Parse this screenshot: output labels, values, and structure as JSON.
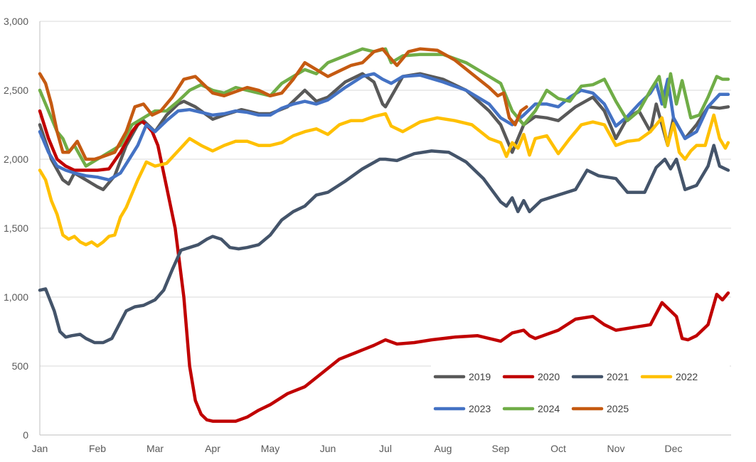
{
  "chart_data": {
    "type": "line",
    "title": "",
    "xlabel": "",
    "ylabel": "",
    "ylim": [
      0,
      3000
    ],
    "yticks": [
      0,
      500,
      1000,
      1500,
      2000,
      2500,
      3000
    ],
    "ytick_labels": [
      "0",
      "500",
      "1,000",
      "1,500",
      "2,000",
      "2,500",
      "3,000"
    ],
    "xlim": [
      0,
      12
    ],
    "month_labels": [
      "Jan",
      "Feb",
      "Mar",
      "Apr",
      "May",
      "Jun",
      "Jul",
      "Aug",
      "Sep",
      "Oct",
      "Nov",
      "Dec"
    ],
    "grid": true,
    "legend_position": "bottom-right",
    "series": [
      {
        "name": "2019",
        "color": "#595959",
        "x": [
          0,
          0.2,
          0.4,
          0.5,
          0.6,
          0.8,
          1.0,
          1.1,
          1.3,
          1.5,
          1.7,
          1.8,
          2.0,
          2.2,
          2.4,
          2.5,
          2.7,
          3.0,
          3.2,
          3.5,
          3.8,
          4.0,
          4.3,
          4.6,
          4.8,
          5.0,
          5.3,
          5.6,
          5.8,
          5.95,
          6.0,
          6.3,
          6.6,
          7.0,
          7.4,
          7.8,
          8.0,
          8.2,
          8.4,
          8.6,
          8.8,
          9.0,
          9.3,
          9.6,
          9.8,
          10.0,
          10.2,
          10.4,
          10.6,
          10.7,
          10.8,
          10.9,
          11.0,
          11.2,
          11.4,
          11.6,
          11.8,
          11.95
        ],
        "values": [
          2250,
          2000,
          1850,
          1820,
          1900,
          1850,
          1800,
          1780,
          1880,
          2100,
          2250,
          2280,
          2200,
          2320,
          2400,
          2420,
          2380,
          2290,
          2320,
          2360,
          2330,
          2330,
          2380,
          2500,
          2420,
          2450,
          2560,
          2620,
          2560,
          2400,
          2380,
          2600,
          2620,
          2580,
          2500,
          2350,
          2250,
          2050,
          2250,
          2310,
          2300,
          2280,
          2380,
          2450,
          2350,
          2150,
          2300,
          2350,
          2200,
          2400,
          2250,
          2100,
          2300,
          2150,
          2250,
          2380,
          2370,
          2380
        ]
      },
      {
        "name": "2020",
        "color": "#C00000",
        "x": [
          0,
          0.15,
          0.3,
          0.45,
          0.6,
          0.8,
          1.0,
          1.2,
          1.4,
          1.6,
          1.75,
          1.85,
          1.95,
          2.05,
          2.2,
          2.35,
          2.5,
          2.6,
          2.7,
          2.8,
          2.9,
          3.0,
          3.2,
          3.4,
          3.6,
          3.8,
          4.0,
          4.3,
          4.6,
          4.9,
          5.2,
          5.5,
          5.8,
          6.0,
          6.2,
          6.5,
          6.8,
          7.2,
          7.6,
          8.0,
          8.2,
          8.4,
          8.5,
          8.6,
          8.8,
          9.0,
          9.3,
          9.6,
          9.8,
          10.0,
          10.3,
          10.6,
          10.8,
          10.95,
          11.05,
          11.15,
          11.25,
          11.4,
          11.6,
          11.75,
          11.85,
          11.95
        ],
        "values": [
          2350,
          2150,
          2000,
          1950,
          1920,
          1920,
          1920,
          1930,
          2050,
          2200,
          2280,
          2250,
          2200,
          2100,
          1800,
          1500,
          1000,
          500,
          250,
          150,
          110,
          100,
          100,
          100,
          130,
          180,
          220,
          300,
          350,
          450,
          550,
          600,
          650,
          690,
          660,
          670,
          690,
          710,
          720,
          680,
          740,
          760,
          720,
          700,
          730,
          760,
          840,
          860,
          800,
          760,
          780,
          800,
          960,
          900,
          860,
          700,
          690,
          720,
          800,
          1020,
          980,
          1030
        ]
      },
      {
        "name": "2021",
        "color": "#44546A",
        "x": [
          0,
          0.1,
          0.25,
          0.35,
          0.45,
          0.55,
          0.7,
          0.8,
          0.95,
          1.1,
          1.25,
          1.35,
          1.5,
          1.65,
          1.8,
          2.0,
          2.15,
          2.3,
          2.45,
          2.6,
          2.75,
          2.9,
          3.0,
          3.15,
          3.3,
          3.45,
          3.6,
          3.8,
          4.0,
          4.2,
          4.4,
          4.6,
          4.8,
          5.0,
          5.3,
          5.6,
          5.9,
          6.0,
          6.2,
          6.5,
          6.8,
          7.1,
          7.4,
          7.7,
          8.0,
          8.1,
          8.2,
          8.3,
          8.4,
          8.5,
          8.7,
          9.0,
          9.3,
          9.5,
          9.7,
          10.0,
          10.2,
          10.5,
          10.7,
          10.85,
          10.95,
          11.05,
          11.2,
          11.4,
          11.6,
          11.7,
          11.8,
          11.95
        ],
        "values": [
          1050,
          1060,
          900,
          750,
          710,
          720,
          730,
          700,
          670,
          670,
          700,
          780,
          900,
          930,
          940,
          980,
          1050,
          1200,
          1340,
          1360,
          1380,
          1420,
          1440,
          1420,
          1360,
          1350,
          1360,
          1380,
          1450,
          1560,
          1620,
          1660,
          1740,
          1760,
          1840,
          1930,
          2000,
          2000,
          1990,
          2040,
          2060,
          2050,
          1980,
          1860,
          1690,
          1660,
          1720,
          1620,
          1700,
          1620,
          1700,
          1740,
          1780,
          1920,
          1880,
          1860,
          1760,
          1760,
          1940,
          2000,
          1930,
          2000,
          1780,
          1810,
          1950,
          2100,
          1950,
          1920
        ]
      },
      {
        "name": "2022",
        "color": "#FFC000",
        "x": [
          0,
          0.1,
          0.2,
          0.3,
          0.4,
          0.5,
          0.6,
          0.7,
          0.8,
          0.9,
          1.0,
          1.1,
          1.2,
          1.3,
          1.4,
          1.5,
          1.7,
          1.85,
          2.0,
          2.2,
          2.4,
          2.6,
          2.8,
          3.0,
          3.2,
          3.4,
          3.6,
          3.8,
          4.0,
          4.2,
          4.4,
          4.6,
          4.8,
          5.0,
          5.2,
          5.4,
          5.6,
          5.8,
          6.0,
          6.1,
          6.3,
          6.6,
          6.9,
          7.2,
          7.5,
          7.8,
          8.0,
          8.1,
          8.2,
          8.3,
          8.4,
          8.5,
          8.6,
          8.8,
          9.0,
          9.2,
          9.4,
          9.6,
          9.8,
          10.0,
          10.2,
          10.4,
          10.6,
          10.8,
          10.9,
          11.0,
          11.1,
          11.2,
          11.3,
          11.4,
          11.55,
          11.7,
          11.8,
          11.9,
          11.95
        ],
        "values": [
          1920,
          1850,
          1700,
          1600,
          1450,
          1420,
          1440,
          1400,
          1380,
          1400,
          1370,
          1400,
          1440,
          1450,
          1580,
          1650,
          1850,
          1980,
          1950,
          1970,
          2060,
          2150,
          2100,
          2060,
          2100,
          2130,
          2130,
          2100,
          2100,
          2120,
          2170,
          2200,
          2220,
          2180,
          2250,
          2280,
          2280,
          2310,
          2330,
          2240,
          2200,
          2270,
          2300,
          2280,
          2250,
          2150,
          2120,
          2020,
          2120,
          2080,
          2180,
          2030,
          2150,
          2170,
          2040,
          2150,
          2250,
          2270,
          2250,
          2100,
          2130,
          2140,
          2200,
          2300,
          2100,
          2260,
          2050,
          2000,
          2060,
          2100,
          2100,
          2320,
          2150,
          2080,
          2120
        ]
      },
      {
        "name": "2023",
        "color": "#4472C4",
        "x": [
          0,
          0.15,
          0.3,
          0.45,
          0.6,
          0.8,
          1.0,
          1.2,
          1.4,
          1.55,
          1.7,
          1.85,
          2.0,
          2.2,
          2.4,
          2.6,
          2.8,
          3.0,
          3.2,
          3.4,
          3.6,
          3.8,
          4.0,
          4.2,
          4.4,
          4.6,
          4.8,
          5.0,
          5.3,
          5.6,
          5.8,
          5.95,
          6.1,
          6.3,
          6.6,
          7.0,
          7.4,
          7.8,
          8.0,
          8.2,
          8.4,
          8.6,
          8.8,
          9.0,
          9.2,
          9.4,
          9.6,
          9.8,
          10.0,
          10.2,
          10.4,
          10.6,
          10.7,
          10.8,
          10.9,
          11.0,
          11.2,
          11.4,
          11.6,
          11.8,
          11.95
        ],
        "values": [
          2200,
          2050,
          1950,
          1920,
          1900,
          1880,
          1870,
          1850,
          1900,
          2000,
          2100,
          2250,
          2200,
          2280,
          2350,
          2360,
          2340,
          2320,
          2330,
          2350,
          2340,
          2320,
          2320,
          2370,
          2400,
          2420,
          2400,
          2430,
          2520,
          2600,
          2620,
          2580,
          2550,
          2600,
          2610,
          2560,
          2500,
          2400,
          2300,
          2250,
          2320,
          2400,
          2400,
          2380,
          2450,
          2500,
          2480,
          2400,
          2240,
          2310,
          2400,
          2480,
          2550,
          2400,
          2580,
          2300,
          2150,
          2200,
          2380,
          2470,
          2470
        ]
      },
      {
        "name": "2024",
        "color": "#70AD47",
        "x": [
          0,
          0.1,
          0.2,
          0.3,
          0.4,
          0.5,
          0.6,
          0.8,
          1.0,
          1.2,
          1.4,
          1.6,
          1.8,
          2.0,
          2.2,
          2.4,
          2.6,
          2.8,
          3.0,
          3.2,
          3.4,
          3.6,
          3.8,
          4.0,
          4.2,
          4.4,
          4.6,
          4.8,
          5.0,
          5.3,
          5.6,
          5.8,
          6.0,
          6.1,
          6.3,
          6.6,
          7.0,
          7.4,
          7.8,
          8.0,
          8.2,
          8.4,
          8.6,
          8.8,
          9.0,
          9.2,
          9.4,
          9.6,
          9.8,
          10.0,
          10.2,
          10.4,
          10.6,
          10.75,
          10.85,
          10.95,
          11.05,
          11.15,
          11.3,
          11.45,
          11.6,
          11.75,
          11.85,
          11.95
        ],
        "values": [
          2500,
          2400,
          2300,
          2200,
          2150,
          2050,
          2100,
          1950,
          2000,
          2050,
          2100,
          2250,
          2300,
          2350,
          2350,
          2420,
          2500,
          2540,
          2500,
          2480,
          2520,
          2500,
          2480,
          2460,
          2550,
          2600,
          2650,
          2620,
          2700,
          2750,
          2800,
          2780,
          2800,
          2700,
          2750,
          2760,
          2760,
          2700,
          2600,
          2550,
          2350,
          2250,
          2350,
          2500,
          2440,
          2420,
          2530,
          2540,
          2580,
          2420,
          2280,
          2350,
          2500,
          2600,
          2380,
          2620,
          2400,
          2570,
          2300,
          2320,
          2450,
          2600,
          2580,
          2580
        ]
      },
      {
        "name": "2025",
        "color": "#C55A11",
        "x": [
          0,
          0.1,
          0.2,
          0.3,
          0.4,
          0.5,
          0.65,
          0.8,
          0.95,
          1.1,
          1.3,
          1.5,
          1.65,
          1.8,
          1.95,
          2.1,
          2.3,
          2.5,
          2.7,
          2.85,
          3.0,
          3.2,
          3.4,
          3.6,
          3.8,
          4.0,
          4.2,
          4.4,
          4.6,
          4.8,
          5.0,
          5.2,
          5.4,
          5.6,
          5.8,
          5.95,
          6.05,
          6.2,
          6.4,
          6.6,
          6.9,
          7.2,
          7.5,
          7.8,
          7.95,
          8.05,
          8.15,
          8.25,
          8.35,
          8.45
        ],
        "values": [
          2620,
          2550,
          2400,
          2200,
          2050,
          2050,
          2130,
          2000,
          2000,
          2020,
          2050,
          2200,
          2380,
          2400,
          2320,
          2350,
          2450,
          2580,
          2600,
          2540,
          2480,
          2460,
          2490,
          2520,
          2500,
          2460,
          2480,
          2580,
          2700,
          2650,
          2600,
          2640,
          2680,
          2700,
          2780,
          2800,
          2750,
          2680,
          2780,
          2800,
          2790,
          2720,
          2620,
          2520,
          2460,
          2480,
          2300,
          2250,
          2350,
          2380
        ]
      }
    ]
  }
}
